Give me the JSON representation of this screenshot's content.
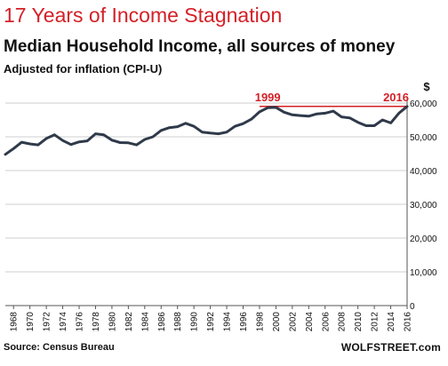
{
  "header": {
    "title": "17 Years of Income Stagnation",
    "subtitle": "Median Household Income, all sources of money",
    "note": "Adjusted for inflation (CPI-U)"
  },
  "footer": {
    "source": "Source: Census Bureau",
    "brand": "WOLFSTREET.com"
  },
  "colors": {
    "title": "#d42027",
    "line": "#2f3a4a",
    "annotation": "#d42027",
    "grid": "#cfcfcf"
  },
  "chart_data": {
    "type": "line",
    "title": "17 Years of Income Stagnation",
    "subtitle": "Median Household Income, all sources of money",
    "ylabel": "$",
    "ylim": [
      0,
      60000
    ],
    "yticks": [
      0,
      10000,
      20000,
      30000,
      40000,
      50000,
      60000
    ],
    "ytick_labels": [
      "0",
      "10,000",
      "20,000",
      "30,000",
      "40,000",
      "50,000",
      "60,000"
    ],
    "xlim": [
      1967,
      2016
    ],
    "xticks": [
      1968,
      1970,
      1972,
      1974,
      1976,
      1978,
      1980,
      1982,
      1984,
      1986,
      1988,
      1990,
      1992,
      1994,
      1996,
      1998,
      2000,
      2002,
      2004,
      2006,
      2008,
      2010,
      2012,
      2014,
      2016
    ],
    "grid": true,
    "y_axis_position": "right",
    "x": [
      1967,
      1968,
      1969,
      1970,
      1971,
      1972,
      1973,
      1974,
      1975,
      1976,
      1977,
      1978,
      1979,
      1980,
      1981,
      1982,
      1983,
      1984,
      1985,
      1986,
      1987,
      1988,
      1989,
      1990,
      1991,
      1992,
      1993,
      1994,
      1995,
      1996,
      1997,
      1998,
      1999,
      2000,
      2001,
      2002,
      2003,
      2004,
      2005,
      2006,
      2007,
      2008,
      2009,
      2010,
      2011,
      2012,
      2013,
      2014,
      2015,
      2016
    ],
    "values": [
      44800,
      46500,
      48400,
      47900,
      47600,
      49500,
      50600,
      48900,
      47700,
      48500,
      48800,
      50900,
      50600,
      49000,
      48300,
      48200,
      47600,
      49200,
      50000,
      51900,
      52700,
      53000,
      54000,
      53100,
      51400,
      51100,
      50900,
      51400,
      53100,
      53900,
      55200,
      57400,
      58600,
      58700,
      57300,
      56500,
      56300,
      56100,
      56800,
      57000,
      57600,
      55900,
      55600,
      54300,
      53300,
      53300,
      55000,
      54100,
      57000,
      59000
    ],
    "annotations": [
      {
        "label": "1999",
        "x": 1999
      },
      {
        "label": "2016",
        "x": 2016
      }
    ],
    "reference_line": {
      "y": 59000,
      "from": 1998,
      "to": 2016
    }
  }
}
